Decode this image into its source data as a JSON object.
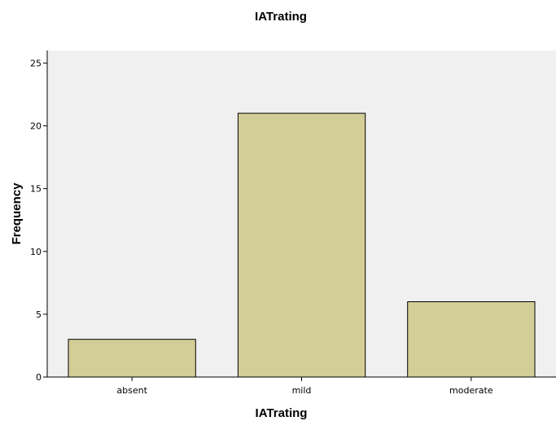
{
  "chart_data": {
    "type": "bar",
    "title": "IATrating",
    "xlabel": "IATrating",
    "ylabel": "Frequency",
    "categories": [
      "absent",
      "mild",
      "moderate"
    ],
    "values": [
      3,
      21,
      6
    ],
    "ylim": [
      0,
      26
    ],
    "yticks": [
      0,
      5,
      10,
      15,
      20,
      25
    ],
    "grid": false,
    "colors": {
      "plot_background": "#f0f0f0",
      "bar_fill": "#d3ce97",
      "bar_stroke": "#000000",
      "axis": "#000000"
    }
  }
}
